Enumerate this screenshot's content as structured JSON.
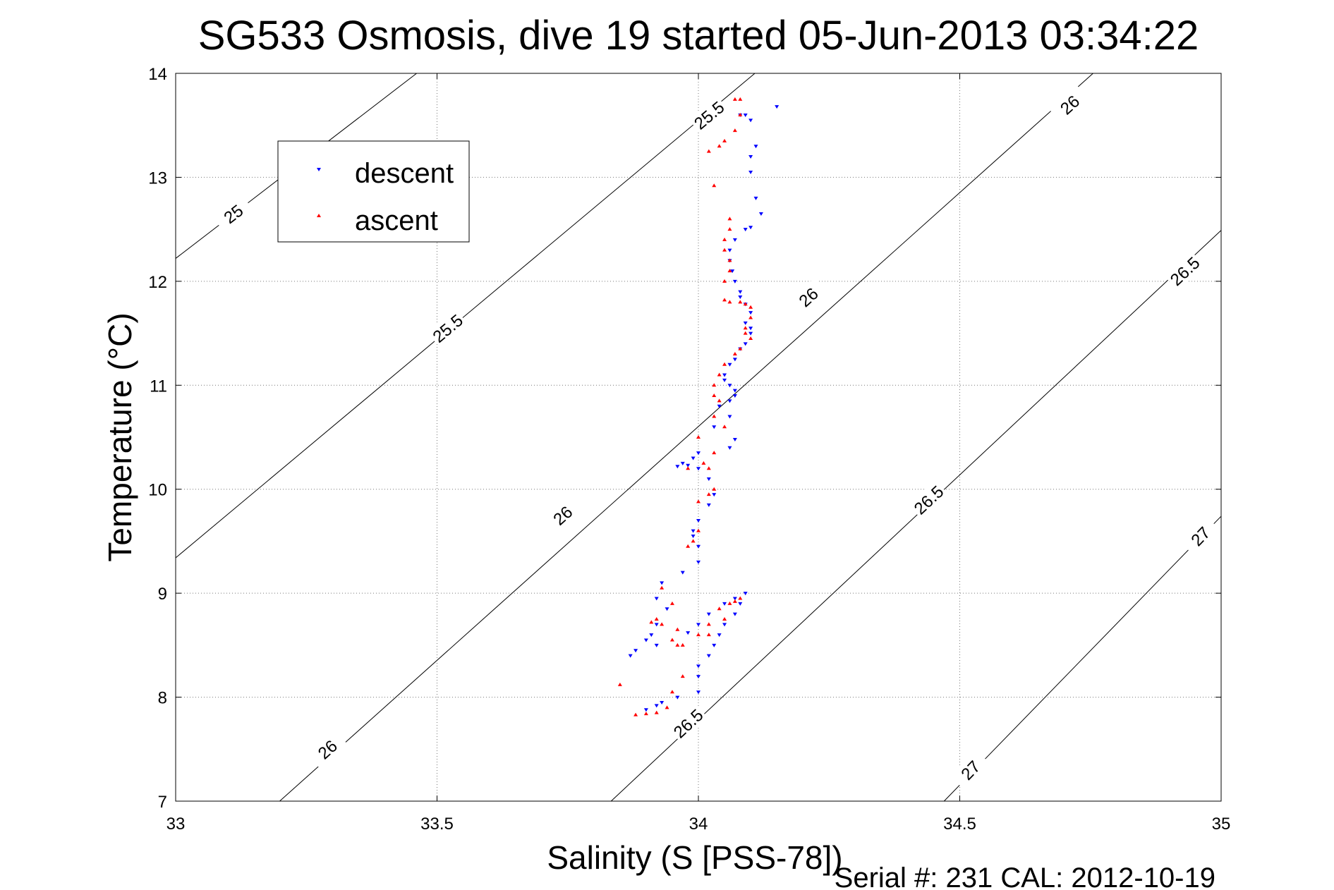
{
  "chart_data": {
    "type": "scatter",
    "title": "SG533 Osmosis, dive 19 started 05-Jun-2013 03:34:22",
    "xlabel": "Salinity (S [PSS-78])",
    "ylabel": "Temperature (°C)",
    "footer": "Serial #: 231  CAL: 2012-10-19",
    "xlim": [
      33,
      35
    ],
    "ylim": [
      7,
      14
    ],
    "xticks": [
      "33",
      "33.5",
      "34",
      "34.5",
      "35"
    ],
    "yticks": [
      "7",
      "8",
      "9",
      "10",
      "11",
      "12",
      "13",
      "14"
    ],
    "grid": true,
    "legend": {
      "placement": "top-left",
      "entries": [
        "descent",
        "ascent"
      ]
    },
    "colors": {
      "descent": "#0000ff",
      "ascent": "#ff0000",
      "contour": "#000000"
    },
    "contours": [
      {
        "level": "25",
        "from": [
          33,
          12.22
        ],
        "to": [
          33.461,
          14
        ],
        "labels": [
          [
            33.11,
            12.65
          ]
        ]
      },
      {
        "level": "25.5",
        "from": [
          33,
          9.34
        ],
        "to": [
          34.108,
          14
        ],
        "labels": [
          [
            33.52,
            11.55
          ],
          [
            34.02,
            13.6
          ]
        ]
      },
      {
        "level": "26",
        "from": [
          33.199,
          7
        ],
        "to": [
          34.755,
          14
        ],
        "labels": [
          [
            33.29,
            7.5
          ],
          [
            33.74,
            9.75
          ],
          [
            34.21,
            11.85
          ],
          [
            34.71,
            13.7
          ]
        ]
      },
      {
        "level": "26.5",
        "from": [
          33.833,
          7
        ],
        "to": [
          35,
          12.49
        ],
        "labels": [
          [
            33.98,
            7.75
          ],
          [
            34.44,
            9.9
          ],
          [
            34.93,
            12.1
          ]
        ]
      },
      {
        "level": "27",
        "from": [
          34.47,
          7
        ],
        "to": [
          35,
          9.74
        ],
        "labels": [
          [
            34.52,
            7.3
          ],
          [
            34.96,
            9.55
          ]
        ]
      }
    ],
    "series": [
      {
        "name": "descent",
        "marker": "triangle-down",
        "points": [
          [
            34.15,
            13.68
          ],
          [
            34.08,
            13.6
          ],
          [
            34.09,
            13.6
          ],
          [
            34.1,
            13.55
          ],
          [
            34.11,
            13.3
          ],
          [
            34.1,
            13.2
          ],
          [
            34.1,
            13.05
          ],
          [
            34.11,
            12.8
          ],
          [
            34.12,
            12.65
          ],
          [
            34.1,
            12.52
          ],
          [
            34.09,
            12.5
          ],
          [
            34.07,
            12.4
          ],
          [
            34.06,
            12.3
          ],
          [
            34.06,
            12.2
          ],
          [
            34.065,
            12.1
          ],
          [
            34.07,
            12.0
          ],
          [
            34.08,
            11.9
          ],
          [
            34.08,
            11.85
          ],
          [
            34.09,
            11.78
          ],
          [
            34.1,
            11.7
          ],
          [
            34.09,
            11.6
          ],
          [
            34.1,
            11.5
          ],
          [
            34.1,
            11.55
          ],
          [
            34.09,
            11.4
          ],
          [
            34.08,
            11.35
          ],
          [
            34.07,
            11.25
          ],
          [
            34.06,
            11.2
          ],
          [
            34.05,
            11.1
          ],
          [
            34.05,
            11.05
          ],
          [
            34.06,
            11.0
          ],
          [
            34.07,
            10.95
          ],
          [
            34.07,
            10.9
          ],
          [
            34.06,
            10.85
          ],
          [
            34.04,
            10.8
          ],
          [
            34.06,
            10.7
          ],
          [
            34.03,
            10.6
          ],
          [
            34.07,
            10.48
          ],
          [
            34.06,
            10.4
          ],
          [
            34.0,
            10.35
          ],
          [
            33.99,
            10.3
          ],
          [
            33.97,
            10.25
          ],
          [
            33.96,
            10.22
          ],
          [
            33.98,
            10.23
          ],
          [
            34.0,
            10.2
          ],
          [
            34.02,
            10.1
          ],
          [
            34.03,
            9.95
          ],
          [
            34.02,
            9.85
          ],
          [
            34.0,
            9.7
          ],
          [
            33.99,
            9.6
          ],
          [
            33.99,
            9.55
          ],
          [
            34.0,
            9.45
          ],
          [
            34.0,
            9.3
          ],
          [
            33.97,
            9.2
          ],
          [
            33.93,
            9.1
          ],
          [
            33.92,
            8.95
          ],
          [
            33.94,
            8.85
          ],
          [
            33.92,
            8.7
          ],
          [
            33.91,
            8.6
          ],
          [
            33.9,
            8.55
          ],
          [
            33.88,
            8.45
          ],
          [
            33.87,
            8.4
          ],
          [
            33.92,
            8.5
          ],
          [
            33.98,
            8.62
          ],
          [
            34.0,
            8.7
          ],
          [
            34.02,
            8.8
          ],
          [
            34.05,
            8.9
          ],
          [
            34.07,
            8.95
          ],
          [
            34.09,
            9.0
          ],
          [
            34.08,
            8.9
          ],
          [
            34.07,
            8.8
          ],
          [
            34.05,
            8.7
          ],
          [
            34.04,
            8.6
          ],
          [
            34.03,
            8.5
          ],
          [
            34.02,
            8.4
          ],
          [
            34.0,
            8.3
          ],
          [
            34.0,
            8.2
          ],
          [
            34.0,
            8.05
          ],
          [
            33.96,
            8.0
          ],
          [
            33.93,
            7.95
          ],
          [
            33.92,
            7.92
          ],
          [
            33.9,
            7.88
          ]
        ]
      },
      {
        "name": "ascent",
        "marker": "triangle-up",
        "points": [
          [
            33.88,
            7.83
          ],
          [
            33.9,
            7.84
          ],
          [
            33.92,
            7.85
          ],
          [
            33.94,
            7.9
          ],
          [
            33.95,
            8.05
          ],
          [
            33.85,
            8.12
          ],
          [
            33.97,
            8.2
          ],
          [
            33.96,
            8.5
          ],
          [
            33.95,
            8.55
          ],
          [
            33.93,
            8.7
          ],
          [
            33.92,
            8.75
          ],
          [
            33.91,
            8.72
          ],
          [
            33.96,
            8.65
          ],
          [
            33.95,
            8.9
          ],
          [
            33.93,
            9.05
          ],
          [
            33.97,
            8.5
          ],
          [
            34.0,
            8.6
          ],
          [
            34.02,
            8.7
          ],
          [
            34.04,
            8.85
          ],
          [
            34.06,
            8.9
          ],
          [
            34.08,
            8.95
          ],
          [
            34.07,
            8.92
          ],
          [
            34.05,
            8.75
          ],
          [
            34.02,
            8.6
          ],
          [
            33.98,
            9.45
          ],
          [
            33.99,
            9.5
          ],
          [
            34.0,
            9.6
          ],
          [
            34.0,
            9.88
          ],
          [
            34.02,
            9.95
          ],
          [
            34.03,
            10.0
          ],
          [
            34.02,
            10.2
          ],
          [
            34.01,
            10.25
          ],
          [
            33.98,
            10.2
          ],
          [
            34.0,
            10.5
          ],
          [
            34.03,
            10.35
          ],
          [
            34.05,
            10.6
          ],
          [
            34.03,
            10.7
          ],
          [
            34.04,
            10.85
          ],
          [
            34.03,
            10.9
          ],
          [
            34.03,
            11.0
          ],
          [
            34.04,
            11.1
          ],
          [
            34.05,
            11.2
          ],
          [
            34.07,
            11.3
          ],
          [
            34.08,
            11.35
          ],
          [
            34.1,
            11.45
          ],
          [
            34.09,
            11.5
          ],
          [
            34.09,
            11.55
          ],
          [
            34.1,
            11.65
          ],
          [
            34.1,
            11.75
          ],
          [
            34.09,
            11.78
          ],
          [
            34.08,
            11.8
          ],
          [
            34.06,
            11.8
          ],
          [
            34.05,
            11.82
          ],
          [
            34.05,
            12.0
          ],
          [
            34.06,
            12.1
          ],
          [
            34.06,
            12.2
          ],
          [
            34.05,
            12.3
          ],
          [
            34.05,
            12.4
          ],
          [
            34.06,
            12.5
          ],
          [
            34.06,
            12.6
          ],
          [
            34.03,
            12.92
          ],
          [
            34.02,
            13.25
          ],
          [
            34.04,
            13.3
          ],
          [
            34.05,
            13.35
          ],
          [
            34.07,
            13.45
          ],
          [
            34.08,
            13.6
          ],
          [
            34.07,
            13.75
          ],
          [
            34.08,
            13.75
          ]
        ]
      }
    ]
  }
}
